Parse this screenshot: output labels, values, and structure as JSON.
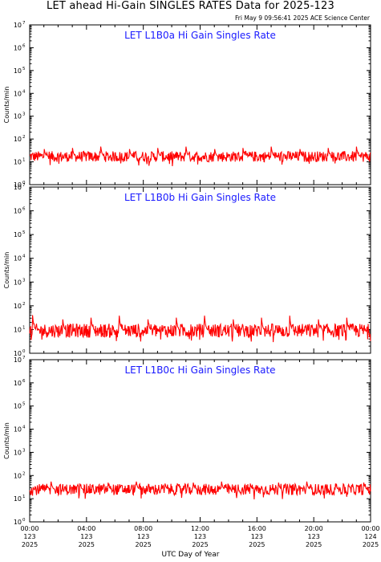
{
  "title": "LET ahead Hi-Gain SINGLES RATES Data for 2025-123",
  "timestamp": "Fri May  9 09:56:41 2025 ACE Science Center",
  "x_axis_label": "UTC Day of Year",
  "y_axis_label": "Counts/min",
  "x_ticks": [
    {
      "time": "00:00",
      "day": "123",
      "year": "2025"
    },
    {
      "time": "04:00",
      "day": "123",
      "year": "2025"
    },
    {
      "time": "08:00",
      "day": "123",
      "year": "2025"
    },
    {
      "time": "12:00",
      "day": "123",
      "year": "2025"
    },
    {
      "time": "16:00",
      "day": "123",
      "year": "2025"
    },
    {
      "time": "20:00",
      "day": "123",
      "year": "2025"
    },
    {
      "time": "00:00",
      "day": "124",
      "year": "2025"
    }
  ],
  "colors": {
    "trace": "#ff0000",
    "panel_title": "#1a1aff",
    "axes": "#000000"
  },
  "chart_data": [
    {
      "type": "line",
      "title": "LET L1B0a Hi Gain Singles Rate",
      "ylabel": "Counts/min",
      "xlabel": "UTC Day of Year",
      "yscale": "log",
      "ylim": [
        1,
        10000000
      ],
      "y_tick_labels": [
        "10^0",
        "10^1",
        "10^2",
        "10^3",
        "10^4",
        "10^5",
        "10^6",
        "10^7"
      ],
      "xlim_hours": [
        0,
        24
      ],
      "series": [
        {
          "baseline": 17,
          "noise_low": 9,
          "noise_high": 30,
          "spike_hours": [
            1.0,
            3.0,
            5.0,
            7.0,
            9.0,
            11.0,
            13.0,
            15.0,
            17.0,
            19.0,
            21.0,
            23.0
          ],
          "spike_peak": 50
        }
      ]
    },
    {
      "type": "line",
      "title": "LET L1B0b Hi Gain Singles Rate",
      "ylabel": "Counts/min",
      "xlabel": "UTC Day of Year",
      "yscale": "log",
      "ylim": [
        1,
        10000000
      ],
      "y_tick_labels": [
        "10^0",
        "10^1",
        "10^2",
        "10^3",
        "10^4",
        "10^5",
        "10^6",
        "10^7"
      ],
      "xlim_hours": [
        0,
        24
      ],
      "series": [
        {
          "baseline": 9,
          "noise_low": 4,
          "noise_high": 18,
          "spike_hours": [
            0.2,
            2.3,
            4.3,
            6.3,
            8.3,
            10.3,
            12.3,
            14.3,
            16.3,
            18.3,
            20.3,
            22.3
          ],
          "spike_peak": 45
        }
      ]
    },
    {
      "type": "line",
      "title": "LET L1B0c Hi Gain Singles Rate",
      "ylabel": "Counts/min",
      "xlabel": "UTC Day of Year",
      "yscale": "log",
      "ylim": [
        1,
        10000000
      ],
      "y_tick_labels": [
        "10^0",
        "10^1",
        "10^2",
        "10^3",
        "10^4",
        "10^5",
        "10^6",
        "10^7"
      ],
      "xlim_hours": [
        0,
        24
      ],
      "series": [
        {
          "baseline": 25,
          "noise_low": 13,
          "noise_high": 45,
          "spike_hours": [
            1.5,
            3.5,
            5.5,
            7.5,
            9.5,
            11.5,
            13.5,
            15.5,
            17.5,
            19.5,
            21.5,
            23.5
          ],
          "spike_peak": 60
        }
      ]
    }
  ]
}
